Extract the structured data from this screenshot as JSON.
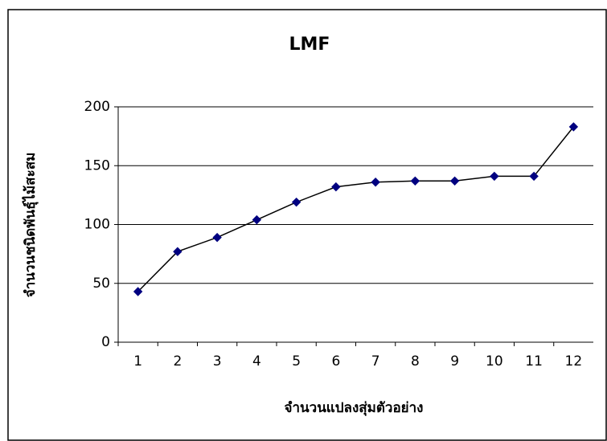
{
  "chart_data": {
    "type": "line",
    "title": "LMF",
    "x_label": "จำนวนแปลงสุ่มตัวอย่าง",
    "y_label": "จำนวนชนิดพันธุ์ไม้สะสม",
    "categories": [
      "1",
      "2",
      "3",
      "4",
      "5",
      "6",
      "7",
      "8",
      "9",
      "10",
      "11",
      "12"
    ],
    "values": [
      43,
      77,
      89,
      104,
      119,
      132,
      136,
      137,
      137,
      141,
      141,
      183
    ],
    "color": "#000000",
    "marker_color": "#000080",
    "ylim": [
      0,
      200
    ],
    "yticks": [
      0,
      50,
      100,
      150,
      200
    ],
    "grid": true
  }
}
